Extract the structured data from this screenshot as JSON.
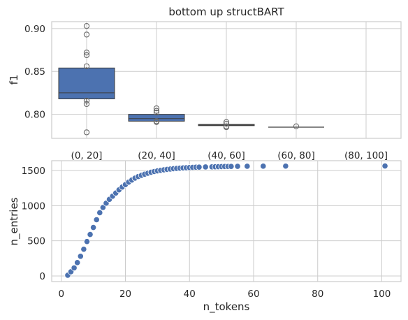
{
  "chart_data": [
    {
      "type": "box",
      "title": "bottom up structBART",
      "xlabel": "",
      "ylabel": "f1",
      "categories": [
        "(0, 20]",
        "(20, 40]",
        "(40, 60]",
        "(60, 80]",
        "(80, 100]"
      ],
      "ylim": [
        0.772,
        0.908
      ],
      "yticks": [
        0.8,
        0.85,
        0.9
      ],
      "ytick_labels": [
        "0.80",
        "0.85",
        "0.90"
      ],
      "grid": true,
      "color": "#4c72b0",
      "boxes": [
        {
          "q1": 0.818,
          "median": 0.825,
          "q3": 0.854,
          "whisker_low": 0.811,
          "whisker_high": 0.855,
          "outliers": [
            0.903,
            0.893,
            0.872,
            0.869,
            0.856,
            0.816,
            0.812,
            0.779
          ]
        },
        {
          "q1": 0.792,
          "median": 0.795,
          "q3": 0.8,
          "whisker_low": 0.791,
          "whisker_high": 0.801,
          "outliers": [
            0.807,
            0.804,
            0.802,
            0.792,
            0.791
          ]
        },
        {
          "q1": 0.7868,
          "median": 0.7875,
          "q3": 0.7882,
          "whisker_low": 0.7865,
          "whisker_high": 0.7885,
          "outliers": [
            0.791,
            0.789,
            0.786,
            0.785
          ]
        },
        {
          "q1": 0.785,
          "median": 0.785,
          "q3": 0.785,
          "whisker_low": 0.785,
          "whisker_high": 0.785,
          "outliers": [
            0.786
          ]
        },
        null
      ]
    },
    {
      "type": "scatter",
      "title": "",
      "xlabel": "n_tokens",
      "ylabel": "n_entries",
      "xlim": [
        -3,
        106
      ],
      "ylim": [
        -80,
        1640
      ],
      "xticks": [
        0,
        20,
        40,
        60,
        80,
        100
      ],
      "yticks": [
        0,
        500,
        1000,
        1500
      ],
      "grid": true,
      "color": "#4c72b0",
      "points": {
        "x": [
          2,
          3,
          4,
          5,
          6,
          7,
          8,
          9,
          10,
          11,
          12,
          13,
          14,
          15,
          16,
          17,
          18,
          19,
          20,
          21,
          22,
          23,
          24,
          25,
          26,
          27,
          28,
          29,
          30,
          31,
          32,
          33,
          34,
          35,
          36,
          37,
          38,
          39,
          40,
          41,
          42,
          43,
          45,
          47,
          48,
          49,
          50,
          51,
          52,
          53,
          55,
          58,
          63,
          70,
          101
        ],
        "y": [
          10,
          60,
          115,
          190,
          280,
          380,
          490,
          590,
          690,
          800,
          900,
          975,
          1035,
          1090,
          1135,
          1180,
          1225,
          1265,
          1300,
          1335,
          1365,
          1392,
          1415,
          1432,
          1448,
          1462,
          1475,
          1486,
          1495,
          1503,
          1510,
          1516,
          1521,
          1526,
          1530,
          1534,
          1537,
          1540,
          1543,
          1545,
          1547,
          1549,
          1551,
          1553,
          1554,
          1555,
          1556,
          1557,
          1558,
          1559,
          1560,
          1561,
          1562,
          1563,
          1565
        ]
      }
    }
  ]
}
